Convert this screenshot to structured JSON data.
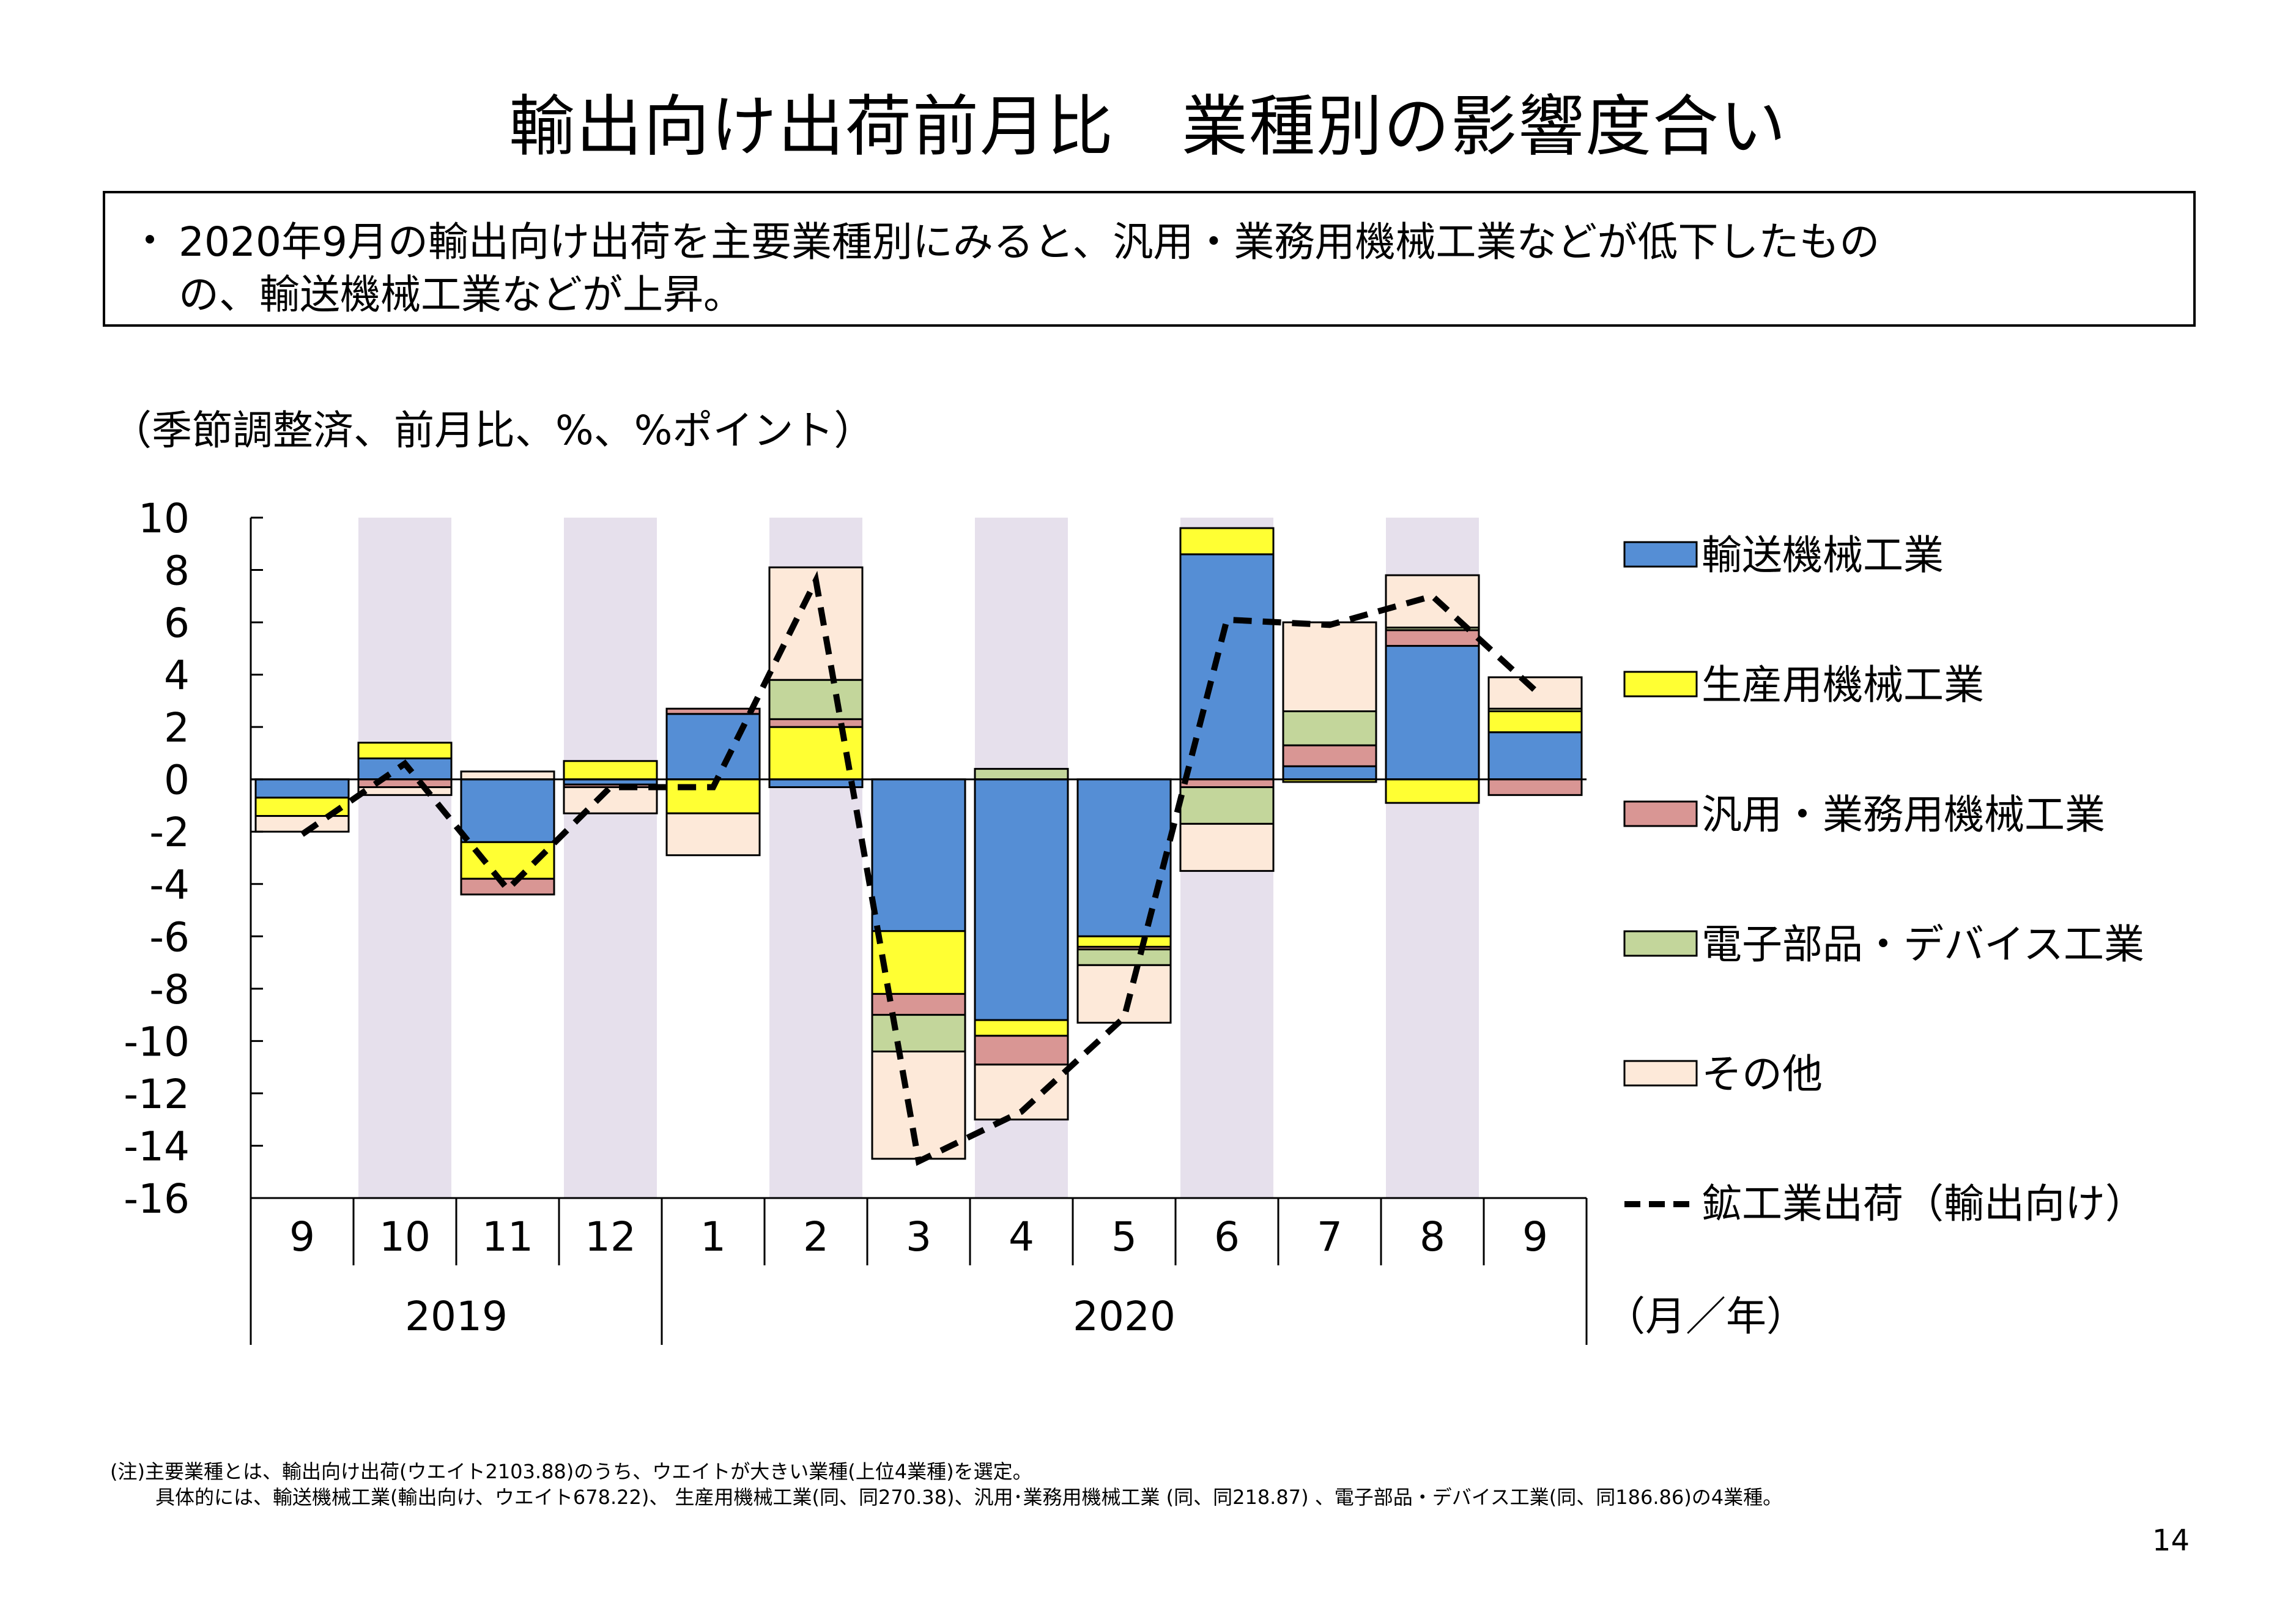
{
  "page": {
    "title": "輸出向け出荷前月比　業種別の影響度合い",
    "summary": {
      "bullet": "・",
      "line1": "2020年9月の輸出向け出荷を主要業種別にみると、汎用・業務用機械工業などが低下したもの",
      "line2": "の、輸送機械工業などが上昇。"
    },
    "unit_label": "（季節調整済、前月比、%、%ポイント）",
    "notes": {
      "line1": "(注)主要業種とは、輸出向け出荷(ウエイト2103.88)のうち、ウエイトが大きい業種(上位4業種)を選定。",
      "line2": "具体的には、輸送機械工業(輸出向け、ウエイト678.22)、 生産用機械工業(同、同270.38)、汎用･業務用機械工業 (同、同218.87) 、電子部品・デバイス工業(同、同186.86)の4業種。"
    },
    "page_number": "14"
  },
  "chart_data": {
    "type": "bar",
    "stacked": true,
    "categories": [
      "9",
      "10",
      "11",
      "12",
      "1",
      "2",
      "3",
      "4",
      "5",
      "6",
      "7",
      "8",
      "9"
    ],
    "year_groups": [
      {
        "label": "2019",
        "start": 0,
        "end": 3
      },
      {
        "label": "2020",
        "start": 4,
        "end": 12
      }
    ],
    "shaded_categories": [
      1,
      3,
      5,
      7,
      9,
      11
    ],
    "axis_suffix": "（月／年）",
    "ylim": [
      -16,
      10
    ],
    "yticks": [
      10,
      8,
      6,
      4,
      2,
      0,
      -2,
      -4,
      -6,
      -8,
      -10,
      -12,
      -14,
      -16
    ],
    "series": [
      {
        "name": "輸送機械工業",
        "color": "#558ed5",
        "values": [
          -0.7,
          0.8,
          -2.4,
          -0.2,
          2.5,
          -0.3,
          -5.8,
          -9.2,
          -6.0,
          8.6,
          0.5,
          5.1,
          1.8
        ]
      },
      {
        "name": "生産用機械工業",
        "color": "#ffff33",
        "values": [
          -0.7,
          0.6,
          -1.4,
          0.7,
          -1.3,
          2.0,
          -2.4,
          -0.6,
          -0.4,
          1.0,
          -0.1,
          -0.9,
          0.8
        ]
      },
      {
        "name": "汎用・業務用機械工業",
        "color": "#d99694",
        "values": [
          0.0,
          -0.3,
          -0.6,
          -0.1,
          0.2,
          0.3,
          -0.8,
          -1.1,
          -0.1,
          -0.3,
          0.8,
          0.6,
          -0.6
        ]
      },
      {
        "name": "電子部品・デバイス工業",
        "color": "#c3d69b",
        "values": [
          0.0,
          0.0,
          0.0,
          0.0,
          0.0,
          1.5,
          -1.4,
          0.4,
          -0.6,
          -1.4,
          1.3,
          0.1,
          0.1
        ]
      },
      {
        "name": "その他",
        "color": "#fde9d9",
        "values": [
          -0.6,
          -0.3,
          0.3,
          -1.0,
          -1.6,
          4.3,
          -4.1,
          -2.1,
          -2.2,
          -1.8,
          3.4,
          2.0,
          1.2
        ]
      }
    ],
    "line": {
      "name": "鉱工業出荷（輸出向け）",
      "style": "dashed",
      "color": "#000000",
      "values": [
        -2.1,
        0.6,
        -4.2,
        -0.3,
        -0.3,
        7.6,
        -14.6,
        -12.7,
        -9.1,
        6.1,
        5.9,
        7.0,
        3.4
      ]
    }
  }
}
